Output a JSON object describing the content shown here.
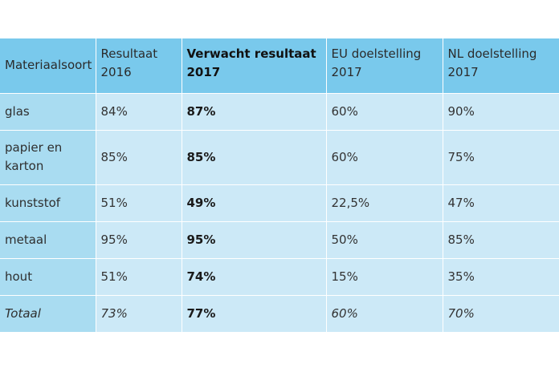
{
  "table": {
    "headers": [
      {
        "line1": "Materiaalsoort",
        "line2": ""
      },
      {
        "line1": "Resultaat",
        "line2": "2016"
      },
      {
        "line1": "Verwacht resultaat",
        "line2": "2017"
      },
      {
        "line1": "EU doelstelling",
        "line2": "2017"
      },
      {
        "line1": "NL doelstelling",
        "line2": "2017"
      }
    ],
    "rows": [
      {
        "material": "glas",
        "material_line2": "",
        "result_2016": "84%",
        "expected_2017": "87%",
        "eu_target_2017": "60%",
        "nl_target_2017": "90%"
      },
      {
        "material": "papier en",
        "material_line2": "karton",
        "result_2016": "85%",
        "expected_2017": "85%",
        "eu_target_2017": "60%",
        "nl_target_2017": "75%"
      },
      {
        "material": "kunststof",
        "material_line2": "",
        "result_2016": "51%",
        "expected_2017": "49%",
        "eu_target_2017": "22,5%",
        "nl_target_2017": "47%"
      },
      {
        "material": "metaal",
        "material_line2": "",
        "result_2016": "95%",
        "expected_2017": "95%",
        "eu_target_2017": "50%",
        "nl_target_2017": "85%"
      },
      {
        "material": "hout",
        "material_line2": "",
        "result_2016": "51%",
        "expected_2017": "74%",
        "eu_target_2017": "15%",
        "nl_target_2017": "35%"
      },
      {
        "material": "Totaal",
        "material_line2": "",
        "result_2016": "73%",
        "expected_2017": "77%",
        "eu_target_2017": "60%",
        "nl_target_2017": "70%"
      }
    ]
  },
  "colors": {
    "header_bg": "#79c9ec",
    "material_col_bg": "#a9dcf1",
    "cell_bg": "#cce9f7"
  }
}
